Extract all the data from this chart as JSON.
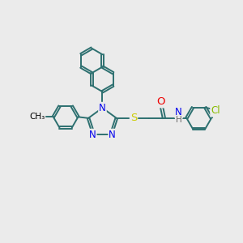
{
  "bg_color": "#ebebeb",
  "bond_color": "#2d7070",
  "bond_lw": 1.4,
  "dbo": 0.045,
  "atom_colors": {
    "N": "#0000ee",
    "S": "#cccc00",
    "O": "#ee0000",
    "Cl": "#88bb00",
    "H": "#666666"
  },
  "fs": 8.5
}
